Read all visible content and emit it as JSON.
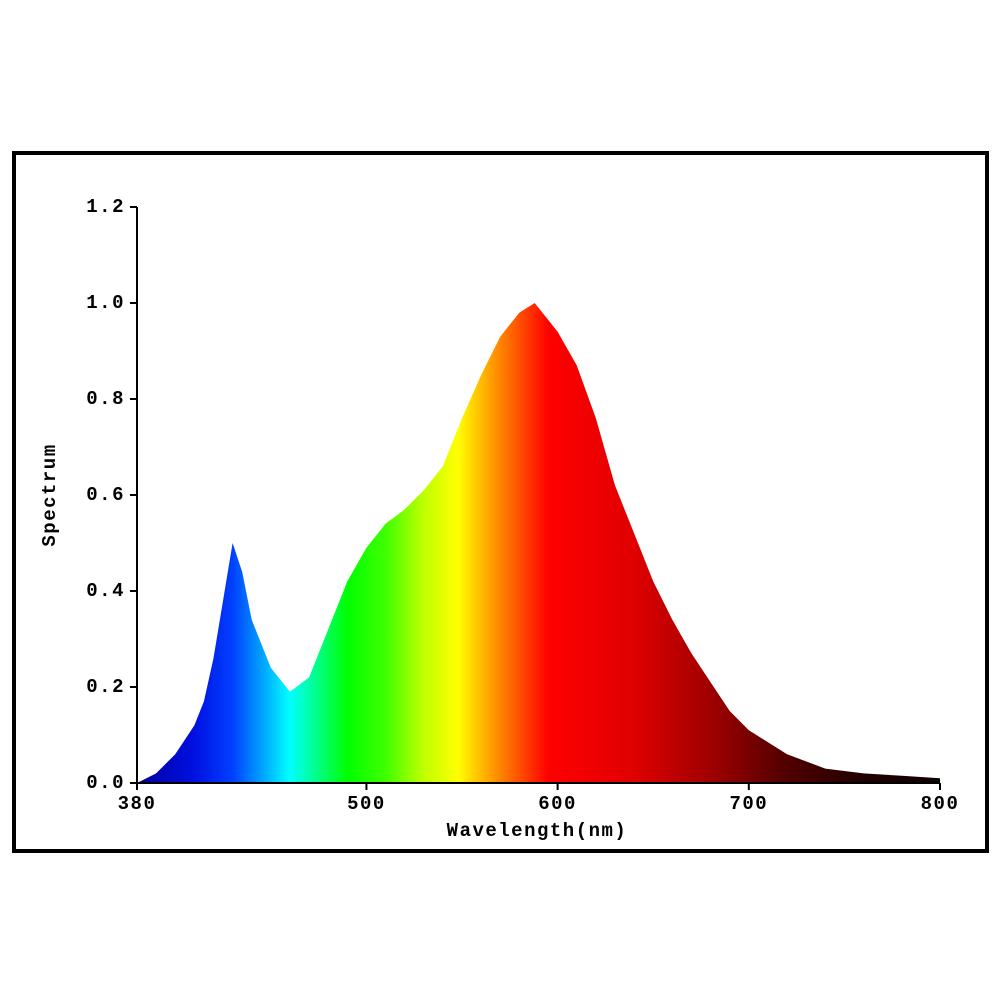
{
  "chart_data": {
    "type": "area",
    "x_label": "Wavelength(nm)",
    "y_label": "Spectrum",
    "x": [
      380,
      390,
      400,
      410,
      415,
      420,
      425,
      430,
      435,
      440,
      450,
      460,
      470,
      480,
      490,
      500,
      510,
      520,
      530,
      540,
      550,
      560,
      570,
      580,
      588,
      600,
      610,
      620,
      630,
      640,
      650,
      660,
      670,
      680,
      690,
      700,
      720,
      740,
      760,
      780,
      800
    ],
    "values": [
      0,
      0.02,
      0.06,
      0.12,
      0.17,
      0.26,
      0.38,
      0.5,
      0.44,
      0.34,
      0.24,
      0.19,
      0.22,
      0.32,
      0.42,
      0.49,
      0.54,
      0.57,
      0.61,
      0.66,
      0.76,
      0.85,
      0.93,
      0.98,
      1.0,
      0.94,
      0.87,
      0.76,
      0.62,
      0.52,
      0.42,
      0.34,
      0.27,
      0.21,
      0.15,
      0.11,
      0.06,
      0.03,
      0.02,
      0.015,
      0.01
    ],
    "fill": "spectrum",
    "xlim": [
      380,
      800
    ],
    "xticks": [
      380,
      500,
      600,
      700,
      800
    ],
    "ylim": [
      0,
      1.2
    ],
    "yticks": [
      {
        "value": 0,
        "label": "0.0"
      },
      {
        "value": 0.2,
        "label": "0.2"
      },
      {
        "value": 0.4,
        "label": "0.4"
      },
      {
        "value": 0.6,
        "label": "0.6"
      },
      {
        "value": 0.8,
        "label": "0.8"
      },
      {
        "value": 1.0,
        "label": "1.0"
      },
      {
        "value": 1.2,
        "label": "1.2"
      }
    ]
  }
}
